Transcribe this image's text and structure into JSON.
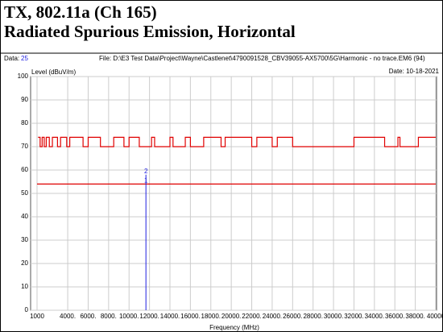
{
  "report": {
    "title_line1": "TX, 802.11a (Ch 165)",
    "title_line2": "Radiated Spurious Emission, Horizontal"
  },
  "chart_data": {
    "type": "line",
    "data_label": "Data:",
    "data_number": 25,
    "file": "File: D:\\E3 Test Data\\Project\\Wayne\\Castlenet\\4790091528_CBV39055-AX5700\\5G\\Harmonic - no trace.EM6  (94)",
    "date": "Date: 10-18-2021",
    "y_label": "Level (dBuV/m)",
    "x_label": "Frequency (MHz)",
    "xlim": [
      1000,
      40000
    ],
    "ylim": [
      0,
      100
    ],
    "yticks": [
      0,
      10,
      20,
      30,
      40,
      50,
      60,
      70,
      80,
      90,
      100
    ],
    "xticks": [
      {
        "value": 1000,
        "label": "1000"
      },
      {
        "value": 4000,
        "label": "4000."
      },
      {
        "value": 6000,
        "label": "6000."
      },
      {
        "value": 8000,
        "label": "8000."
      },
      {
        "value": 10000,
        "label": "10000."
      },
      {
        "value": 12000,
        "label": "12000."
      },
      {
        "value": 14000,
        "label": "14000."
      },
      {
        "value": 16000,
        "label": "16000."
      },
      {
        "value": 18000,
        "label": "18000."
      },
      {
        "value": 20000,
        "label": "20000."
      },
      {
        "value": 22000,
        "label": "22000."
      },
      {
        "value": 24000,
        "label": "24000."
      },
      {
        "value": 26000,
        "label": "26000."
      },
      {
        "value": 28000,
        "label": "28000."
      },
      {
        "value": 30000,
        "label": "30000."
      },
      {
        "value": 32000,
        "label": "32000."
      },
      {
        "value": 34000,
        "label": "34000."
      },
      {
        "value": 36000,
        "label": "36000."
      },
      {
        "value": 38000,
        "label": "38000."
      },
      {
        "value": 40000,
        "label": "40000"
      }
    ],
    "grid": true,
    "series": [
      {
        "color": "#e00000",
        "x": [
          1100,
          1300,
          1300,
          1500,
          1500,
          1700,
          1700,
          1900,
          1900,
          2200,
          2200,
          2500,
          2500,
          3000,
          3000,
          3300,
          3300,
          3900,
          3900,
          4200,
          4200,
          5500,
          5500,
          6000,
          6000,
          7200,
          7200,
          8500,
          8500,
          9500,
          9500,
          10000,
          10000,
          11000,
          11000,
          12200,
          12200,
          12500,
          12500,
          14000,
          14000,
          14300,
          14300,
          15500,
          15500,
          16000,
          16000,
          17300,
          17300,
          19000,
          19000,
          19400,
          19400,
          22000,
          22000,
          22500,
          22500,
          24000,
          24000,
          24500,
          24500,
          26000,
          26000,
          32000,
          32000,
          35000,
          35000,
          36300,
          36300,
          36500,
          36500,
          38300,
          38300,
          40000
        ],
        "values": [
          74,
          74,
          70,
          70,
          74,
          74,
          70,
          70,
          74,
          74,
          70,
          70,
          74,
          74,
          70,
          70,
          74,
          74,
          70,
          70,
          74,
          74,
          70,
          70,
          74,
          74,
          70,
          70,
          74,
          74,
          70,
          70,
          74,
          74,
          70,
          70,
          74,
          74,
          70,
          70,
          74,
          74,
          70,
          70,
          74,
          74,
          70,
          70,
          74,
          74,
          70,
          70,
          74,
          74,
          70,
          70,
          74,
          74,
          70,
          70,
          74,
          74,
          70,
          70,
          74,
          74,
          70,
          70,
          74,
          74,
          70,
          70,
          74,
          74
        ]
      },
      {
        "color": "#e00000",
        "x": [
          1000,
          40000
        ],
        "values": [
          54,
          54
        ]
      }
    ],
    "markers": [
      {
        "label": "1",
        "x": 11650,
        "value": 54
      },
      {
        "label": "2",
        "x": 11650,
        "value": 58
      }
    ],
    "marker_color": "#2020e0"
  }
}
